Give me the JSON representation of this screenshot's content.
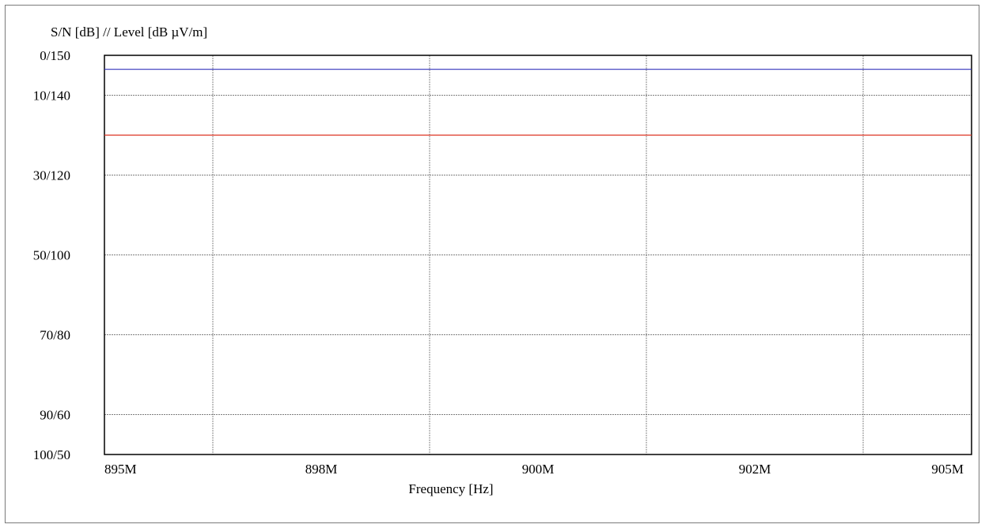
{
  "chart_data": {
    "type": "line",
    "ylabel": "S/N [dB] // Level [dB µV/m]",
    "xlabel": "Frequency [Hz]",
    "y_tick_labels": [
      "0/150",
      "10/140",
      "30/120",
      "50/100",
      "70/80",
      "90/60",
      "100/50"
    ],
    "y_tick_values": [
      0,
      10,
      30,
      50,
      70,
      90,
      100
    ],
    "ylim": [
      0,
      100
    ],
    "y_inverted": true,
    "x_tick_labels": [
      "895M",
      "898M",
      "900M",
      "902M",
      "905M"
    ],
    "x_tick_values": [
      895000000,
      897500000,
      900000000,
      902500000,
      905000000
    ],
    "xlim": [
      895000000,
      905000000
    ],
    "x_grid": [
      896250000,
      898750000,
      901250000,
      903750000
    ],
    "grid": true,
    "series": [
      {
        "color": "#3333bb",
        "x": [
          895000000,
          905000000
        ],
        "values": [
          3.5,
          3.5
        ]
      },
      {
        "color": "#dd3322",
        "x": [
          895000000,
          905000000
        ],
        "values": [
          20,
          20
        ]
      }
    ]
  }
}
